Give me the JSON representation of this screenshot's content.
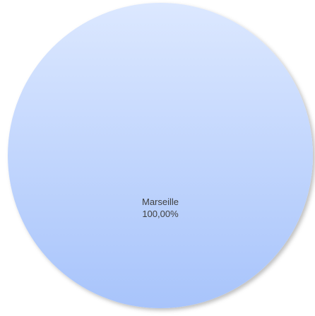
{
  "chart_data": {
    "type": "pie",
    "title": "",
    "categories": [
      "Marseille"
    ],
    "values": [
      100
    ],
    "labels": [
      {
        "category": "Marseille",
        "value_text": "100,00%"
      }
    ],
    "colors": {
      "slice_top": "#dce8ff",
      "slice_bottom": "#a8c4fb",
      "label": "#404040"
    },
    "legend": "none"
  }
}
